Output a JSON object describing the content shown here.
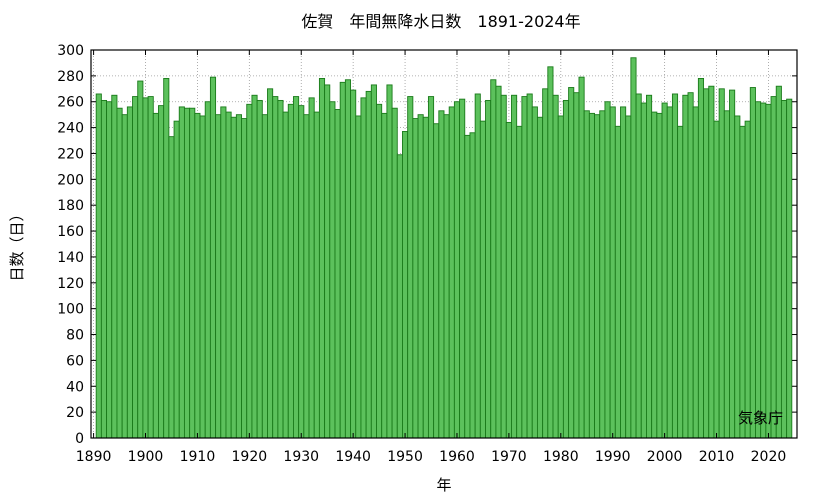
{
  "chart_data": {
    "type": "bar",
    "title": "佐賀　年間無降水日数　1891-2024年",
    "xlabel": "年",
    "ylabel": "日数（日）",
    "credit": "気象庁",
    "xlim": [
      1889.5,
      2025.5
    ],
    "ylim": [
      0,
      300
    ],
    "x_ticks": [
      1890,
      1900,
      1910,
      1920,
      1930,
      1940,
      1950,
      1960,
      1970,
      1980,
      1990,
      2000,
      2010,
      2020
    ],
    "y_ticks": [
      0,
      20,
      40,
      60,
      80,
      100,
      120,
      140,
      160,
      180,
      200,
      220,
      240,
      260,
      280,
      300
    ],
    "grid": true,
    "bar_fill": "#5cc15c",
    "bar_stroke": "#1a7a1a",
    "first_year": 1891,
    "x": [
      1891,
      1892,
      1893,
      1894,
      1895,
      1896,
      1897,
      1898,
      1899,
      1900,
      1901,
      1902,
      1903,
      1904,
      1905,
      1906,
      1907,
      1908,
      1909,
      1910,
      1911,
      1912,
      1913,
      1914,
      1915,
      1916,
      1917,
      1918,
      1919,
      1920,
      1921,
      1922,
      1923,
      1924,
      1925,
      1926,
      1927,
      1928,
      1929,
      1930,
      1931,
      1932,
      1933,
      1934,
      1935,
      1936,
      1937,
      1938,
      1939,
      1940,
      1941,
      1942,
      1943,
      1944,
      1945,
      1946,
      1947,
      1948,
      1949,
      1950,
      1951,
      1952,
      1953,
      1954,
      1955,
      1956,
      1957,
      1958,
      1959,
      1960,
      1961,
      1962,
      1963,
      1964,
      1965,
      1966,
      1967,
      1968,
      1969,
      1970,
      1971,
      1972,
      1973,
      1974,
      1975,
      1976,
      1977,
      1978,
      1979,
      1980,
      1981,
      1982,
      1983,
      1984,
      1985,
      1986,
      1987,
      1988,
      1989,
      1990,
      1991,
      1992,
      1993,
      1994,
      1995,
      1996,
      1997,
      1998,
      1999,
      2000,
      2001,
      2002,
      2003,
      2004,
      2005,
      2006,
      2007,
      2008,
      2009,
      2010,
      2011,
      2012,
      2013,
      2014,
      2015,
      2016,
      2017,
      2018,
      2019,
      2020,
      2021,
      2022,
      2023,
      2024
    ],
    "values": [
      266,
      261,
      260,
      265,
      255,
      250,
      256,
      264,
      276,
      263,
      264,
      251,
      257,
      278,
      233,
      245,
      256,
      255,
      255,
      251,
      249,
      260,
      279,
      250,
      256,
      252,
      248,
      250,
      247,
      258,
      265,
      261,
      250,
      270,
      264,
      261,
      252,
      258,
      264,
      257,
      250,
      263,
      252,
      278,
      273,
      260,
      254,
      275,
      277,
      269,
      249,
      263,
      268,
      273,
      258,
      251,
      273,
      255,
      219,
      237,
      264,
      247,
      250,
      248,
      264,
      243,
      253,
      250,
      256,
      260,
      262,
      234,
      236,
      266,
      245,
      261,
      277,
      272,
      265,
      244,
      265,
      241,
      264,
      266,
      256,
      248,
      270,
      287,
      265,
      249,
      261,
      271,
      267,
      279,
      253,
      251,
      250,
      253,
      260,
      256,
      241,
      256,
      249,
      294,
      266,
      259,
      265,
      252,
      251,
      259,
      256,
      266,
      241,
      265,
      267,
      256,
      278,
      270,
      272,
      245,
      270,
      253,
      269,
      249,
      241,
      245,
      271,
      260,
      259,
      258,
      264,
      272,
      261,
      262
    ]
  }
}
